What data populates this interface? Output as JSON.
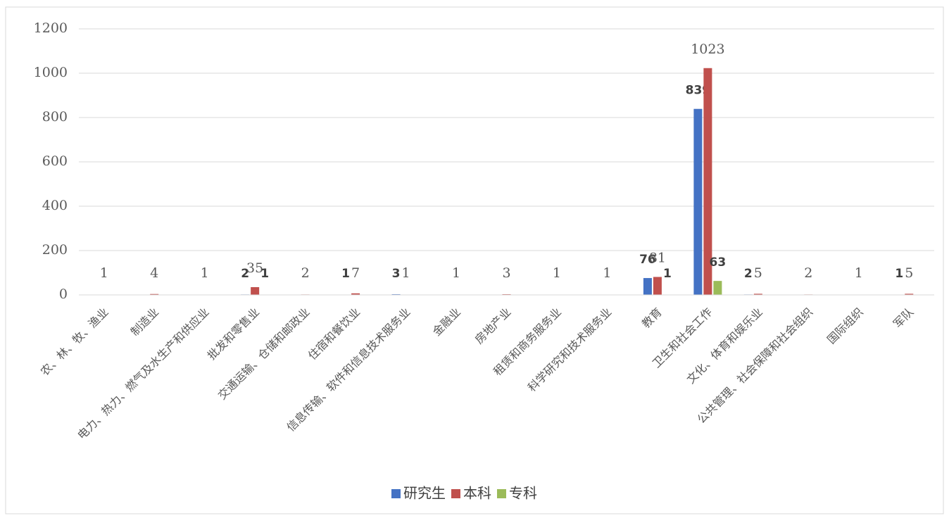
{
  "chart_data": {
    "type": "bar",
    "categories": [
      "农、林、牧、渔业",
      "制造业",
      "电力、热力、燃气及水生产和供应业",
      "批发和零售业",
      "交通运输、仓储和邮政业",
      "住宿和餐饮业",
      "信息传输、软件和信息技术服务业",
      "金融业",
      "房地产业",
      "租赁和商务服务业",
      "科学研究和技术服务业",
      "教育",
      "卫生和社会工作",
      "文化、体育和娱乐业",
      "公共管理、社会保障和社会组织",
      "国际组织",
      "军队"
    ],
    "series": [
      {
        "name": "研究生",
        "color": "#4472c4",
        "values": [
          null,
          null,
          null,
          2,
          null,
          1,
          3,
          null,
          null,
          null,
          null,
          76,
          839,
          2,
          null,
          null,
          1
        ]
      },
      {
        "name": "本科",
        "color": "#c0504d",
        "values": [
          1,
          4,
          1,
          35,
          2,
          7,
          1,
          1,
          3,
          1,
          1,
          81,
          1023,
          5,
          2,
          1,
          5
        ]
      },
      {
        "name": "专科",
        "color": "#9bbb59",
        "values": [
          null,
          null,
          null,
          1,
          null,
          null,
          null,
          null,
          null,
          null,
          null,
          1,
          63,
          null,
          null,
          null,
          null
        ]
      }
    ],
    "ylim": [
      0,
      1200
    ],
    "yticks": [
      0,
      200,
      400,
      600,
      800,
      1000,
      1200
    ],
    "grid": true,
    "legend": "bottom"
  }
}
